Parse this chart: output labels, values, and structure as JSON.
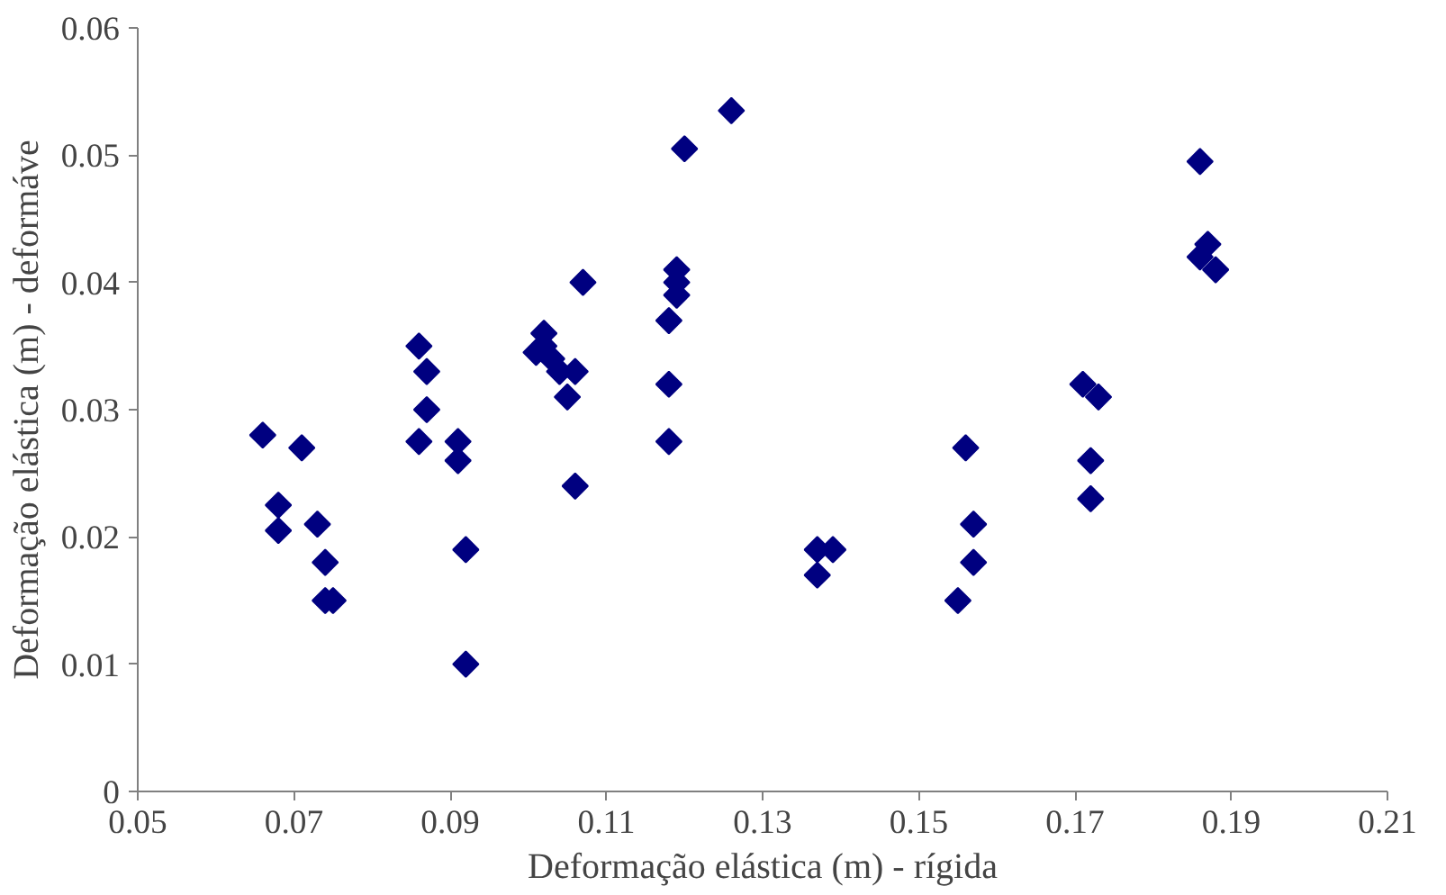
{
  "chart_data": {
    "type": "scatter",
    "xlabel": "Deformação elástica (m) - rígida",
    "ylabel": "Deformação elástica (m) - deformáve",
    "x": [
      0.066,
      0.071,
      0.068,
      0.068,
      0.073,
      0.074,
      0.074,
      0.075,
      0.086,
      0.087,
      0.087,
      0.086,
      0.091,
      0.091,
      0.092,
      0.092,
      0.101,
      0.102,
      0.102,
      0.103,
      0.104,
      0.105,
      0.106,
      0.107,
      0.106,
      0.118,
      0.119,
      0.119,
      0.119,
      0.118,
      0.118,
      0.12,
      0.126,
      0.137,
      0.139,
      0.137,
      0.156,
      0.157,
      0.157,
      0.155,
      0.171,
      0.173,
      0.172,
      0.172,
      0.186,
      0.187,
      0.186,
      0.188
    ],
    "series": [
      {
        "color": "#000080",
        "values": [
          0.028,
          0.027,
          0.0225,
          0.0205,
          0.021,
          0.018,
          0.015,
          0.015,
          0.035,
          0.033,
          0.03,
          0.0275,
          0.0275,
          0.026,
          0.019,
          0.01,
          0.0345,
          0.036,
          0.035,
          0.034,
          0.033,
          0.031,
          0.033,
          0.04,
          0.024,
          0.037,
          0.041,
          0.04,
          0.039,
          0.032,
          0.0275,
          0.0505,
          0.0535,
          0.019,
          0.019,
          0.017,
          0.027,
          0.021,
          0.018,
          0.015,
          0.032,
          0.031,
          0.026,
          0.023,
          0.0495,
          0.043,
          0.042,
          0.041
        ]
      }
    ],
    "xlim": [
      0.05,
      0.21
    ],
    "xticks": [
      0.05,
      0.07,
      0.09,
      0.11,
      0.13,
      0.15,
      0.17,
      0.19,
      0.21
    ],
    "ylim": [
      0,
      0.06
    ],
    "yticks": [
      0,
      0.01,
      0.02,
      0.03,
      0.04,
      0.05,
      0.06
    ],
    "grid": false,
    "marker": "diamond"
  }
}
